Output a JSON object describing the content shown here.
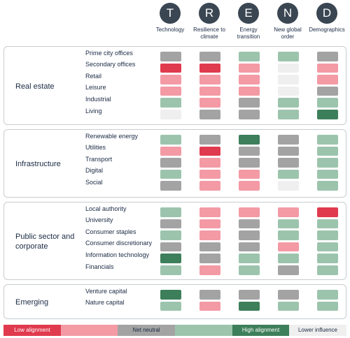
{
  "colors": {
    "low": "#e03a4e",
    "pink": "#f39aa5",
    "neutral": "#a3a3a3",
    "green": "#9cc4ad",
    "high": "#3d7f5a",
    "lower": "#efefef"
  },
  "trends": [
    {
      "letter": "T",
      "label": "Technology",
      "icon": "circle-t-icon"
    },
    {
      "letter": "R",
      "label": "Resilience to climate",
      "icon": "circle-r-icon"
    },
    {
      "letter": "E",
      "label": "Energy transition",
      "icon": "circle-e-icon"
    },
    {
      "letter": "N",
      "label": "New global order",
      "icon": "circle-n-icon"
    },
    {
      "letter": "D",
      "label": "Demographics",
      "icon": "circle-d-icon"
    }
  ],
  "groups": [
    {
      "title": "Real estate",
      "rows": [
        {
          "label": "Prime city offices",
          "cells": [
            "neutral",
            "neutral",
            "green",
            "green",
            "neutral"
          ]
        },
        {
          "label": "Secondary offices",
          "cells": [
            "low",
            "low",
            "pink",
            "lower",
            "pink"
          ]
        },
        {
          "label": "Retail",
          "cells": [
            "pink",
            "pink",
            "pink",
            "lower",
            "pink"
          ]
        },
        {
          "label": "Leisure",
          "cells": [
            "pink",
            "pink",
            "pink",
            "lower",
            "neutral"
          ]
        },
        {
          "label": "Industrial",
          "cells": [
            "green",
            "pink",
            "neutral",
            "green",
            "green"
          ]
        },
        {
          "label": "Living",
          "cells": [
            "lower",
            "neutral",
            "neutral",
            "green",
            "high"
          ]
        }
      ]
    },
    {
      "title": "Infrastructure",
      "rows": [
        {
          "label": "Renewable energy",
          "cells": [
            "green",
            "neutral",
            "high",
            "neutral",
            "green"
          ]
        },
        {
          "label": "Utilities",
          "cells": [
            "pink",
            "low",
            "neutral",
            "neutral",
            "green"
          ]
        },
        {
          "label": "Transport",
          "cells": [
            "neutral",
            "pink",
            "neutral",
            "neutral",
            "green"
          ]
        },
        {
          "label": "Digital",
          "cells": [
            "green",
            "pink",
            "pink",
            "green",
            "green"
          ]
        },
        {
          "label": "Social",
          "cells": [
            "neutral",
            "pink",
            "pink",
            "lower",
            "green"
          ]
        }
      ]
    },
    {
      "title": "Public sector and corporate",
      "rows": [
        {
          "label": "Local authority",
          "cells": [
            "green",
            "pink",
            "pink",
            "pink",
            "low"
          ]
        },
        {
          "label": "University",
          "cells": [
            "neutral",
            "pink",
            "neutral",
            "green",
            "green"
          ]
        },
        {
          "label": "Consumer staples",
          "cells": [
            "green",
            "pink",
            "neutral",
            "green",
            "green"
          ]
        },
        {
          "label": "Consumer discretionary",
          "cells": [
            "neutral",
            "neutral",
            "neutral",
            "pink",
            "green"
          ]
        },
        {
          "label": "Information technology",
          "cells": [
            "high",
            "neutral",
            "green",
            "green",
            "green"
          ]
        },
        {
          "label": "Financials",
          "cells": [
            "green",
            "pink",
            "green",
            "neutral",
            "green"
          ]
        }
      ]
    },
    {
      "title": "Emerging",
      "rows": [
        {
          "label": "Venture capital",
          "cells": [
            "high",
            "neutral",
            "neutral",
            "neutral",
            "green"
          ]
        },
        {
          "label": "Nature capital",
          "cells": [
            "green",
            "pink",
            "high",
            "green",
            "green"
          ]
        }
      ]
    }
  ],
  "legend": [
    {
      "label": "Low alignment",
      "color": "low"
    },
    {
      "label": "",
      "color": "pink"
    },
    {
      "label": "Net neutral",
      "color": "neutral"
    },
    {
      "label": "",
      "color": "green"
    },
    {
      "label": "High alignment",
      "color": "high"
    },
    {
      "label": "Lower influence",
      "color": "lower"
    }
  ]
}
